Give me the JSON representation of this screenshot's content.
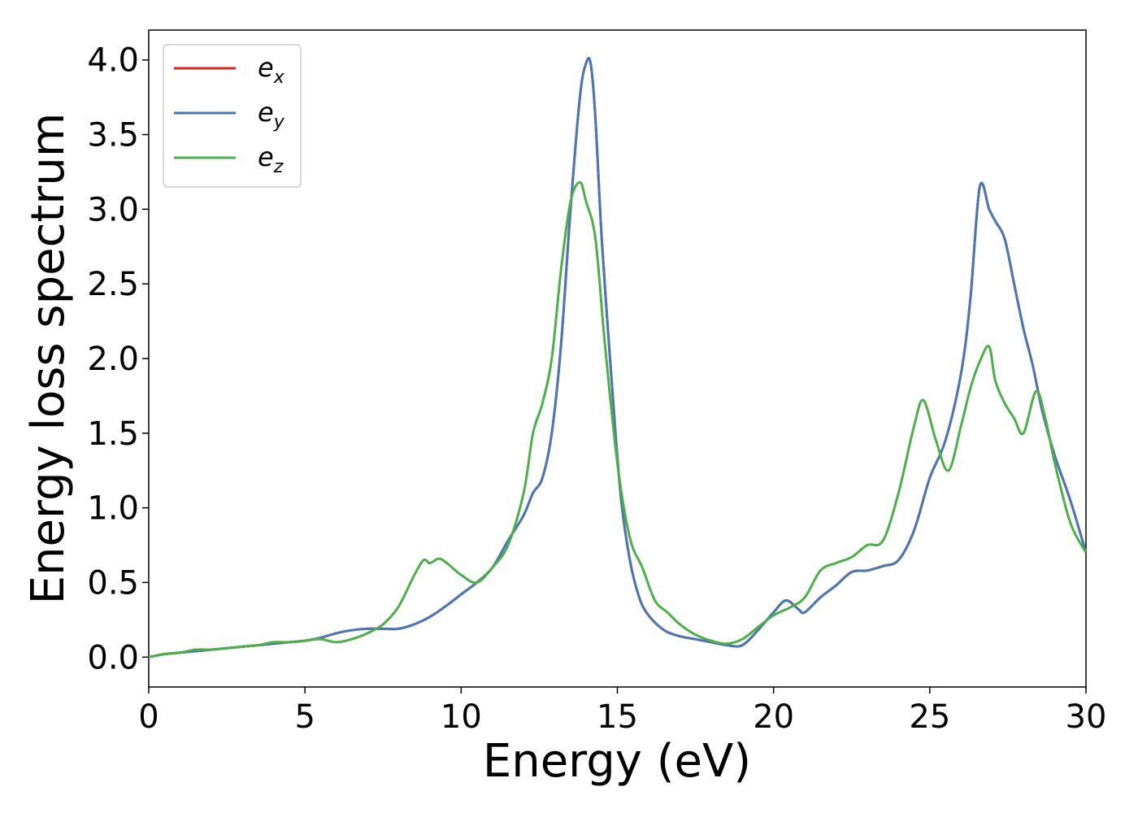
{
  "chart_data": {
    "type": "line",
    "xlabel": "Energy (eV)",
    "ylabel": "Energy loss spectrum",
    "xlim": [
      0,
      30
    ],
    "ylim": [
      -0.2,
      4.2
    ],
    "xticks": [
      0,
      5,
      10,
      15,
      20,
      25,
      30
    ],
    "yticks": [
      0.0,
      0.5,
      1.0,
      1.5,
      2.0,
      2.5,
      3.0,
      3.5,
      4.0
    ],
    "xtick_labels": [
      "0",
      "5",
      "10",
      "15",
      "20",
      "25",
      "30"
    ],
    "ytick_labels": [
      "0.0",
      "0.5",
      "1.0",
      "1.5",
      "2.0",
      "2.5",
      "3.0",
      "3.5",
      "4.0"
    ],
    "grid": false,
    "legend_position": "top-left",
    "series": [
      {
        "name": "e_x",
        "label_base": "e",
        "label_sub": "x",
        "color": "#d62728",
        "x": [
          0,
          0.5,
          1,
          1.5,
          2,
          2.5,
          3,
          3.5,
          4,
          4.5,
          5,
          5.5,
          6,
          6.5,
          7,
          7.5,
          8,
          8.5,
          9,
          9.5,
          10,
          10.5,
          11,
          11.5,
          12,
          12.3,
          12.6,
          12.9,
          13.2,
          13.5,
          13.8,
          14.0,
          14.15,
          14.3,
          14.5,
          14.8,
          15.1,
          15.4,
          15.7,
          16.0,
          16.5,
          17,
          17.5,
          18,
          18.5,
          19,
          19.5,
          20,
          20.4,
          20.8,
          21,
          21.5,
          22,
          22.5,
          23,
          23.5,
          24,
          24.5,
          25,
          25.5,
          26,
          26.3,
          26.6,
          26.9,
          27.1,
          27.4,
          27.7,
          28.0,
          28.3,
          28.6,
          29,
          29.5,
          30
        ],
        "y": [
          0.0,
          0.02,
          0.03,
          0.04,
          0.05,
          0.06,
          0.07,
          0.08,
          0.09,
          0.1,
          0.11,
          0.13,
          0.16,
          0.18,
          0.19,
          0.19,
          0.19,
          0.22,
          0.27,
          0.34,
          0.42,
          0.5,
          0.6,
          0.78,
          0.95,
          1.1,
          1.2,
          1.5,
          2.1,
          3.0,
          3.75,
          3.98,
          3.97,
          3.6,
          2.8,
          1.9,
          1.1,
          0.65,
          0.4,
          0.28,
          0.18,
          0.14,
          0.12,
          0.1,
          0.08,
          0.08,
          0.18,
          0.3,
          0.38,
          0.32,
          0.3,
          0.4,
          0.48,
          0.57,
          0.58,
          0.61,
          0.65,
          0.85,
          1.2,
          1.45,
          1.9,
          2.4,
          3.15,
          3.0,
          2.92,
          2.8,
          2.5,
          2.2,
          1.95,
          1.65,
          1.35,
          1.05,
          0.7
        ]
      },
      {
        "name": "e_y",
        "label_base": "e",
        "label_sub": "y",
        "color": "#4a78b5",
        "x": [
          0,
          0.5,
          1,
          1.5,
          2,
          2.5,
          3,
          3.5,
          4,
          4.5,
          5,
          5.5,
          6,
          6.5,
          7,
          7.5,
          8,
          8.5,
          9,
          9.5,
          10,
          10.5,
          11,
          11.5,
          12,
          12.3,
          12.6,
          12.9,
          13.2,
          13.5,
          13.8,
          14.0,
          14.15,
          14.3,
          14.5,
          14.8,
          15.1,
          15.4,
          15.7,
          16.0,
          16.5,
          17,
          17.5,
          18,
          18.5,
          19,
          19.5,
          20,
          20.4,
          20.8,
          21,
          21.5,
          22,
          22.5,
          23,
          23.5,
          24,
          24.5,
          25,
          25.5,
          26,
          26.3,
          26.6,
          26.9,
          27.1,
          27.4,
          27.7,
          28.0,
          28.3,
          28.6,
          29,
          29.5,
          30
        ],
        "y": [
          0.0,
          0.02,
          0.03,
          0.04,
          0.05,
          0.06,
          0.07,
          0.08,
          0.09,
          0.1,
          0.11,
          0.13,
          0.16,
          0.18,
          0.19,
          0.19,
          0.19,
          0.22,
          0.27,
          0.34,
          0.42,
          0.5,
          0.6,
          0.78,
          0.95,
          1.1,
          1.2,
          1.5,
          2.1,
          3.0,
          3.75,
          3.98,
          3.97,
          3.6,
          2.8,
          1.9,
          1.1,
          0.65,
          0.4,
          0.28,
          0.18,
          0.14,
          0.12,
          0.1,
          0.08,
          0.08,
          0.18,
          0.3,
          0.38,
          0.32,
          0.3,
          0.4,
          0.48,
          0.57,
          0.58,
          0.61,
          0.65,
          0.85,
          1.2,
          1.45,
          1.9,
          2.4,
          3.15,
          3.0,
          2.92,
          2.8,
          2.5,
          2.2,
          1.95,
          1.65,
          1.35,
          1.05,
          0.7
        ]
      },
      {
        "name": "e_z",
        "label_base": "e",
        "label_sub": "z",
        "color": "#4daf4a",
        "x": [
          0,
          0.5,
          1,
          1.5,
          2,
          2.5,
          3,
          3.5,
          4,
          4.5,
          5,
          5.5,
          6,
          6.5,
          7,
          7.5,
          8,
          8.5,
          8.8,
          9.0,
          9.3,
          9.6,
          10,
          10.5,
          11,
          11.5,
          12,
          12.3,
          12.6,
          12.9,
          13.2,
          13.5,
          13.8,
          14.0,
          14.3,
          14.6,
          15.0,
          15.4,
          15.8,
          16.2,
          16.6,
          17,
          17.5,
          18,
          18.5,
          19,
          19.5,
          20,
          20.5,
          21,
          21.5,
          22,
          22.5,
          23,
          23.5,
          24,
          24.5,
          24.8,
          25.2,
          25.6,
          26,
          26.3,
          26.6,
          26.9,
          27.1,
          27.4,
          27.7,
          28.0,
          28.4,
          28.7,
          29,
          29.5,
          30
        ],
        "y": [
          0.0,
          0.02,
          0.03,
          0.05,
          0.05,
          0.06,
          0.07,
          0.08,
          0.1,
          0.1,
          0.11,
          0.12,
          0.1,
          0.12,
          0.16,
          0.22,
          0.34,
          0.55,
          0.65,
          0.63,
          0.66,
          0.62,
          0.55,
          0.5,
          0.6,
          0.75,
          1.1,
          1.5,
          1.7,
          2.0,
          2.6,
          3.05,
          3.18,
          3.05,
          2.8,
          2.1,
          1.3,
          0.8,
          0.6,
          0.38,
          0.3,
          0.22,
          0.15,
          0.11,
          0.09,
          0.12,
          0.2,
          0.28,
          0.33,
          0.4,
          0.58,
          0.63,
          0.67,
          0.75,
          0.78,
          1.1,
          1.55,
          1.72,
          1.45,
          1.25,
          1.55,
          1.8,
          1.98,
          2.08,
          1.85,
          1.7,
          1.6,
          1.5,
          1.78,
          1.6,
          1.3,
          0.9,
          0.7
        ]
      }
    ]
  }
}
